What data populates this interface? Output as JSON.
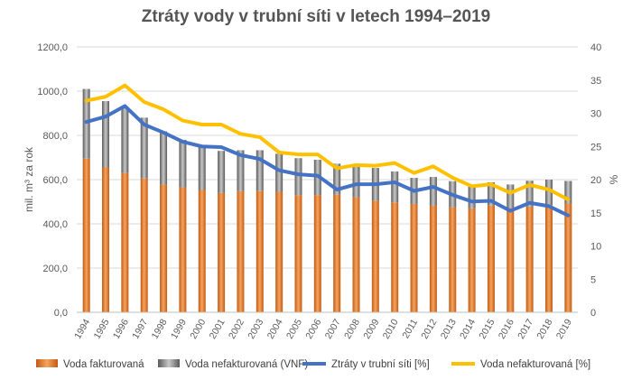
{
  "chart_data": {
    "type": "bar",
    "title": "Ztráty vody v trubní síti v letech 1994–2019",
    "ylabel": "mil. m³ za rok",
    "y2label": "%",
    "ylim": [
      0,
      1200
    ],
    "y2lim": [
      0,
      40
    ],
    "yticks": [
      "0,0",
      "200,0",
      "400,0",
      "600,0",
      "800,0",
      "1000,0",
      "1200,0"
    ],
    "y2ticks": [
      "0",
      "5",
      "10",
      "15",
      "20",
      "25",
      "30",
      "35",
      "40"
    ],
    "categories": [
      "1994",
      "1995",
      "1996",
      "1997",
      "1998",
      "1999",
      "2000",
      "2001",
      "2002",
      "2003",
      "2004",
      "2005",
      "2006",
      "2007",
      "2008",
      "2009",
      "2010",
      "2011",
      "2012",
      "2013",
      "2014",
      "2015",
      "2016",
      "2017",
      "2018",
      "2019"
    ],
    "grid": true,
    "legend_position": "bottom",
    "series": [
      {
        "name": "Voda fakturovaná",
        "kind": "bar",
        "axis": "left",
        "color": "#ED7D31",
        "values": [
          695,
          655,
          630,
          605,
          578,
          565,
          553,
          540,
          548,
          548,
          545,
          530,
          530,
          532,
          520,
          505,
          497,
          490,
          482,
          475,
          470,
          483,
          473,
          478,
          485,
          492
        ]
      },
      {
        "name": "Voda nefakturovaná (VNF)",
        "kind": "bar",
        "axis": "left",
        "color": "#808080",
        "values": [
          315,
          300,
          295,
          275,
          240,
          215,
          197,
          190,
          185,
          185,
          172,
          167,
          160,
          140,
          138,
          148,
          140,
          118,
          130,
          118,
          102,
          105,
          105,
          117,
          115,
          102
        ]
      },
      {
        "name": "Ztráty v trubní síti [%]",
        "kind": "line",
        "axis": "right",
        "color": "#4472C4",
        "values": [
          28.7,
          29.5,
          31.1,
          28.3,
          27.1,
          25.7,
          25.0,
          24.9,
          23.7,
          23.1,
          21.4,
          20.8,
          20.6,
          18.5,
          19.3,
          19.3,
          19.6,
          18.3,
          18.9,
          17.7,
          16.7,
          16.8,
          15.3,
          16.5,
          16.0,
          14.6
        ]
      },
      {
        "name": "Voda nefakturovaná [%]",
        "kind": "line",
        "axis": "right",
        "color": "#FFC000",
        "values": [
          31.9,
          32.5,
          34.2,
          31.7,
          30.6,
          28.9,
          28.3,
          28.3,
          26.9,
          26.4,
          24.1,
          23.8,
          23.8,
          21.7,
          22.2,
          22.1,
          22.5,
          21.0,
          22.0,
          20.3,
          19.0,
          19.3,
          18.0,
          19.2,
          18.5,
          17.0
        ]
      }
    ]
  }
}
